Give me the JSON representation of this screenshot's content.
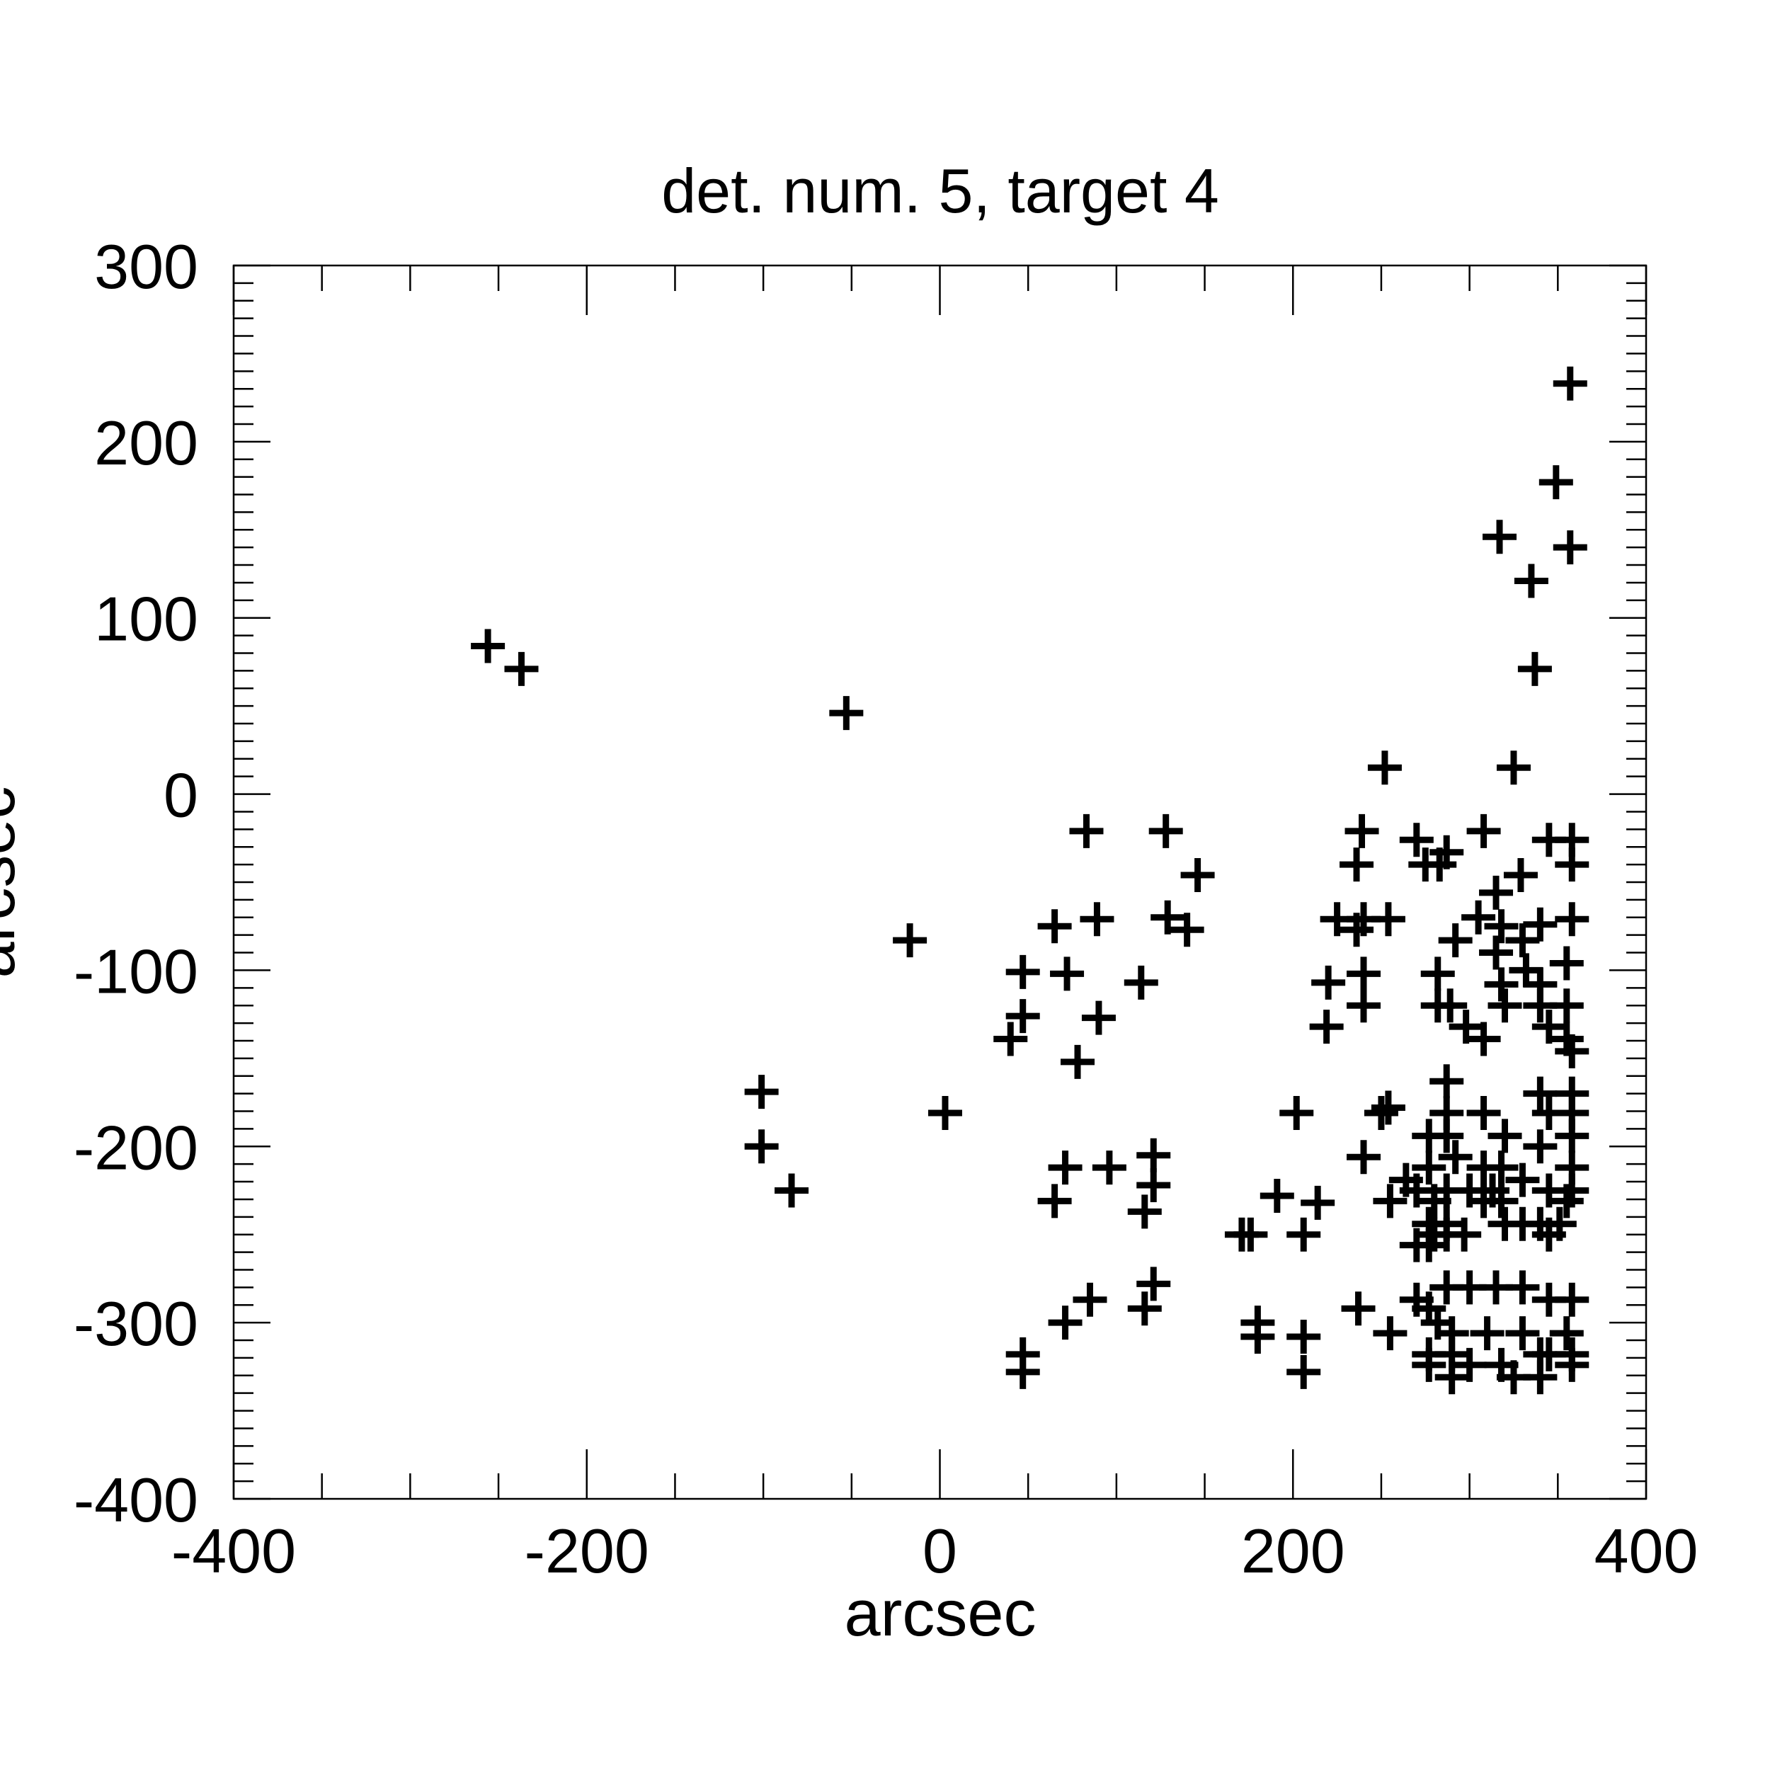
{
  "chart_data": {
    "type": "scatter",
    "title": "det. num. 5, target 4",
    "xlabel": "arcsec",
    "ylabel": "arcsec",
    "xlim": [
      -400,
      400
    ],
    "ylim": [
      -400,
      300
    ],
    "x_ticks": [
      -400,
      -200,
      0,
      200,
      400
    ],
    "y_ticks": [
      -400,
      -300,
      -200,
      -100,
      0,
      100,
      200,
      300
    ],
    "x_tick_labels": [
      "-400",
      "-200",
      "0",
      "200",
      "400"
    ],
    "y_tick_labels": [
      "-400",
      "-300",
      "-200",
      "-100",
      "0",
      "100",
      "200",
      "300"
    ],
    "grid": false,
    "marker": "plus",
    "points": [
      [
        -256,
        84
      ],
      [
        -237,
        71
      ],
      [
        -53,
        46
      ],
      [
        357,
        233
      ],
      [
        349,
        177
      ],
      [
        357,
        140
      ],
      [
        317,
        146
      ],
      [
        335,
        121
      ],
      [
        337,
        71
      ],
      [
        252,
        15
      ],
      [
        325,
        15
      ],
      [
        -17,
        -83
      ],
      [
        3,
        -181
      ],
      [
        -101,
        -169
      ],
      [
        -101,
        -200
      ],
      [
        -84,
        -225
      ],
      [
        83,
        -21
      ],
      [
        128,
        -21
      ],
      [
        146,
        -46
      ],
      [
        65,
        -75
      ],
      [
        89,
        -71
      ],
      [
        129,
        -70
      ],
      [
        140,
        -77
      ],
      [
        47,
        -101
      ],
      [
        72,
        -102
      ],
      [
        114,
        -107
      ],
      [
        47,
        -126
      ],
      [
        90,
        -127
      ],
      [
        40,
        -139
      ],
      [
        78,
        -152
      ],
      [
        71,
        -212
      ],
      [
        96,
        -212
      ],
      [
        121,
        -205
      ],
      [
        121,
        -222
      ],
      [
        65,
        -231
      ],
      [
        116,
        -237
      ],
      [
        121,
        -278
      ],
      [
        116,
        -292
      ],
      [
        85,
        -287
      ],
      [
        71,
        -300
      ],
      [
        47,
        -318
      ],
      [
        47,
        -328
      ],
      [
        171,
        -250
      ],
      [
        176,
        -250
      ],
      [
        180,
        -300
      ],
      [
        180,
        -308
      ],
      [
        191,
        -228
      ],
      [
        214,
        -232
      ],
      [
        206,
        -250
      ],
      [
        202,
        -181
      ],
      [
        206,
        -308
      ],
      [
        206,
        -328
      ],
      [
        239,
        -21
      ],
      [
        236,
        -40
      ],
      [
        225,
        -71
      ],
      [
        240,
        -71
      ],
      [
        254,
        -71
      ],
      [
        236,
        -77
      ],
      [
        220,
        -107
      ],
      [
        240,
        -102
      ],
      [
        240,
        -120
      ],
      [
        219,
        -132
      ],
      [
        240,
        -206
      ],
      [
        250,
        -181
      ],
      [
        254,
        -178
      ],
      [
        255,
        -231
      ],
      [
        237,
        -292
      ],
      [
        255,
        -306
      ],
      [
        270,
        -26
      ],
      [
        287,
        -33
      ],
      [
        275,
        -40
      ],
      [
        283,
        -40
      ],
      [
        308,
        -21
      ],
      [
        345,
        -26
      ],
      [
        358,
        -26
      ],
      [
        358,
        -40
      ],
      [
        329,
        -46
      ],
      [
        315,
        -56
      ],
      [
        305,
        -70
      ],
      [
        318,
        -75
      ],
      [
        330,
        -83
      ],
      [
        358,
        -71
      ],
      [
        340,
        -74
      ],
      [
        292,
        -83
      ],
      [
        315,
        -90
      ],
      [
        355,
        -96
      ],
      [
        332,
        -100
      ],
      [
        318,
        -108
      ],
      [
        282,
        -102
      ],
      [
        340,
        -108
      ],
      [
        282,
        -120
      ],
      [
        289,
        -120
      ],
      [
        320,
        -120
      ],
      [
        340,
        -120
      ],
      [
        355,
        -120
      ],
      [
        298,
        -132
      ],
      [
        308,
        -139
      ],
      [
        345,
        -132
      ],
      [
        355,
        -139
      ],
      [
        358,
        -146
      ],
      [
        287,
        -163
      ],
      [
        340,
        -170
      ],
      [
        358,
        -170
      ],
      [
        287,
        -181
      ],
      [
        308,
        -181
      ],
      [
        345,
        -181
      ],
      [
        358,
        -181
      ],
      [
        277,
        -194
      ],
      [
        287,
        -194
      ],
      [
        320,
        -194
      ],
      [
        340,
        -200
      ],
      [
        358,
        -194
      ],
      [
        277,
        -212
      ],
      [
        292,
        -206
      ],
      [
        308,
        -212
      ],
      [
        318,
        -212
      ],
      [
        358,
        -212
      ],
      [
        264,
        -219
      ],
      [
        270,
        -225
      ],
      [
        287,
        -225
      ],
      [
        300,
        -225
      ],
      [
        313,
        -225
      ],
      [
        330,
        -219
      ],
      [
        345,
        -225
      ],
      [
        280,
        -231
      ],
      [
        308,
        -231
      ],
      [
        318,
        -231
      ],
      [
        355,
        -231
      ],
      [
        358,
        -225
      ],
      [
        277,
        -244
      ],
      [
        287,
        -244
      ],
      [
        320,
        -244
      ],
      [
        330,
        -244
      ],
      [
        340,
        -244
      ],
      [
        351,
        -244
      ],
      [
        280,
        -250
      ],
      [
        287,
        -250
      ],
      [
        297,
        -250
      ],
      [
        345,
        -250
      ],
      [
        270,
        -256
      ],
      [
        277,
        -256
      ],
      [
        287,
        -280
      ],
      [
        300,
        -280
      ],
      [
        315,
        -280
      ],
      [
        330,
        -280
      ],
      [
        345,
        -287
      ],
      [
        358,
        -287
      ],
      [
        270,
        -287
      ],
      [
        277,
        -292
      ],
      [
        282,
        -300
      ],
      [
        290,
        -306
      ],
      [
        310,
        -306
      ],
      [
        330,
        -306
      ],
      [
        355,
        -306
      ],
      [
        277,
        -318
      ],
      [
        290,
        -318
      ],
      [
        300,
        -324
      ],
      [
        318,
        -324
      ],
      [
        340,
        -318
      ],
      [
        358,
        -318
      ],
      [
        277,
        -324
      ],
      [
        290,
        -331
      ],
      [
        325,
        -331
      ],
      [
        340,
        -331
      ],
      [
        345,
        -318
      ],
      [
        358,
        -324
      ]
    ]
  }
}
